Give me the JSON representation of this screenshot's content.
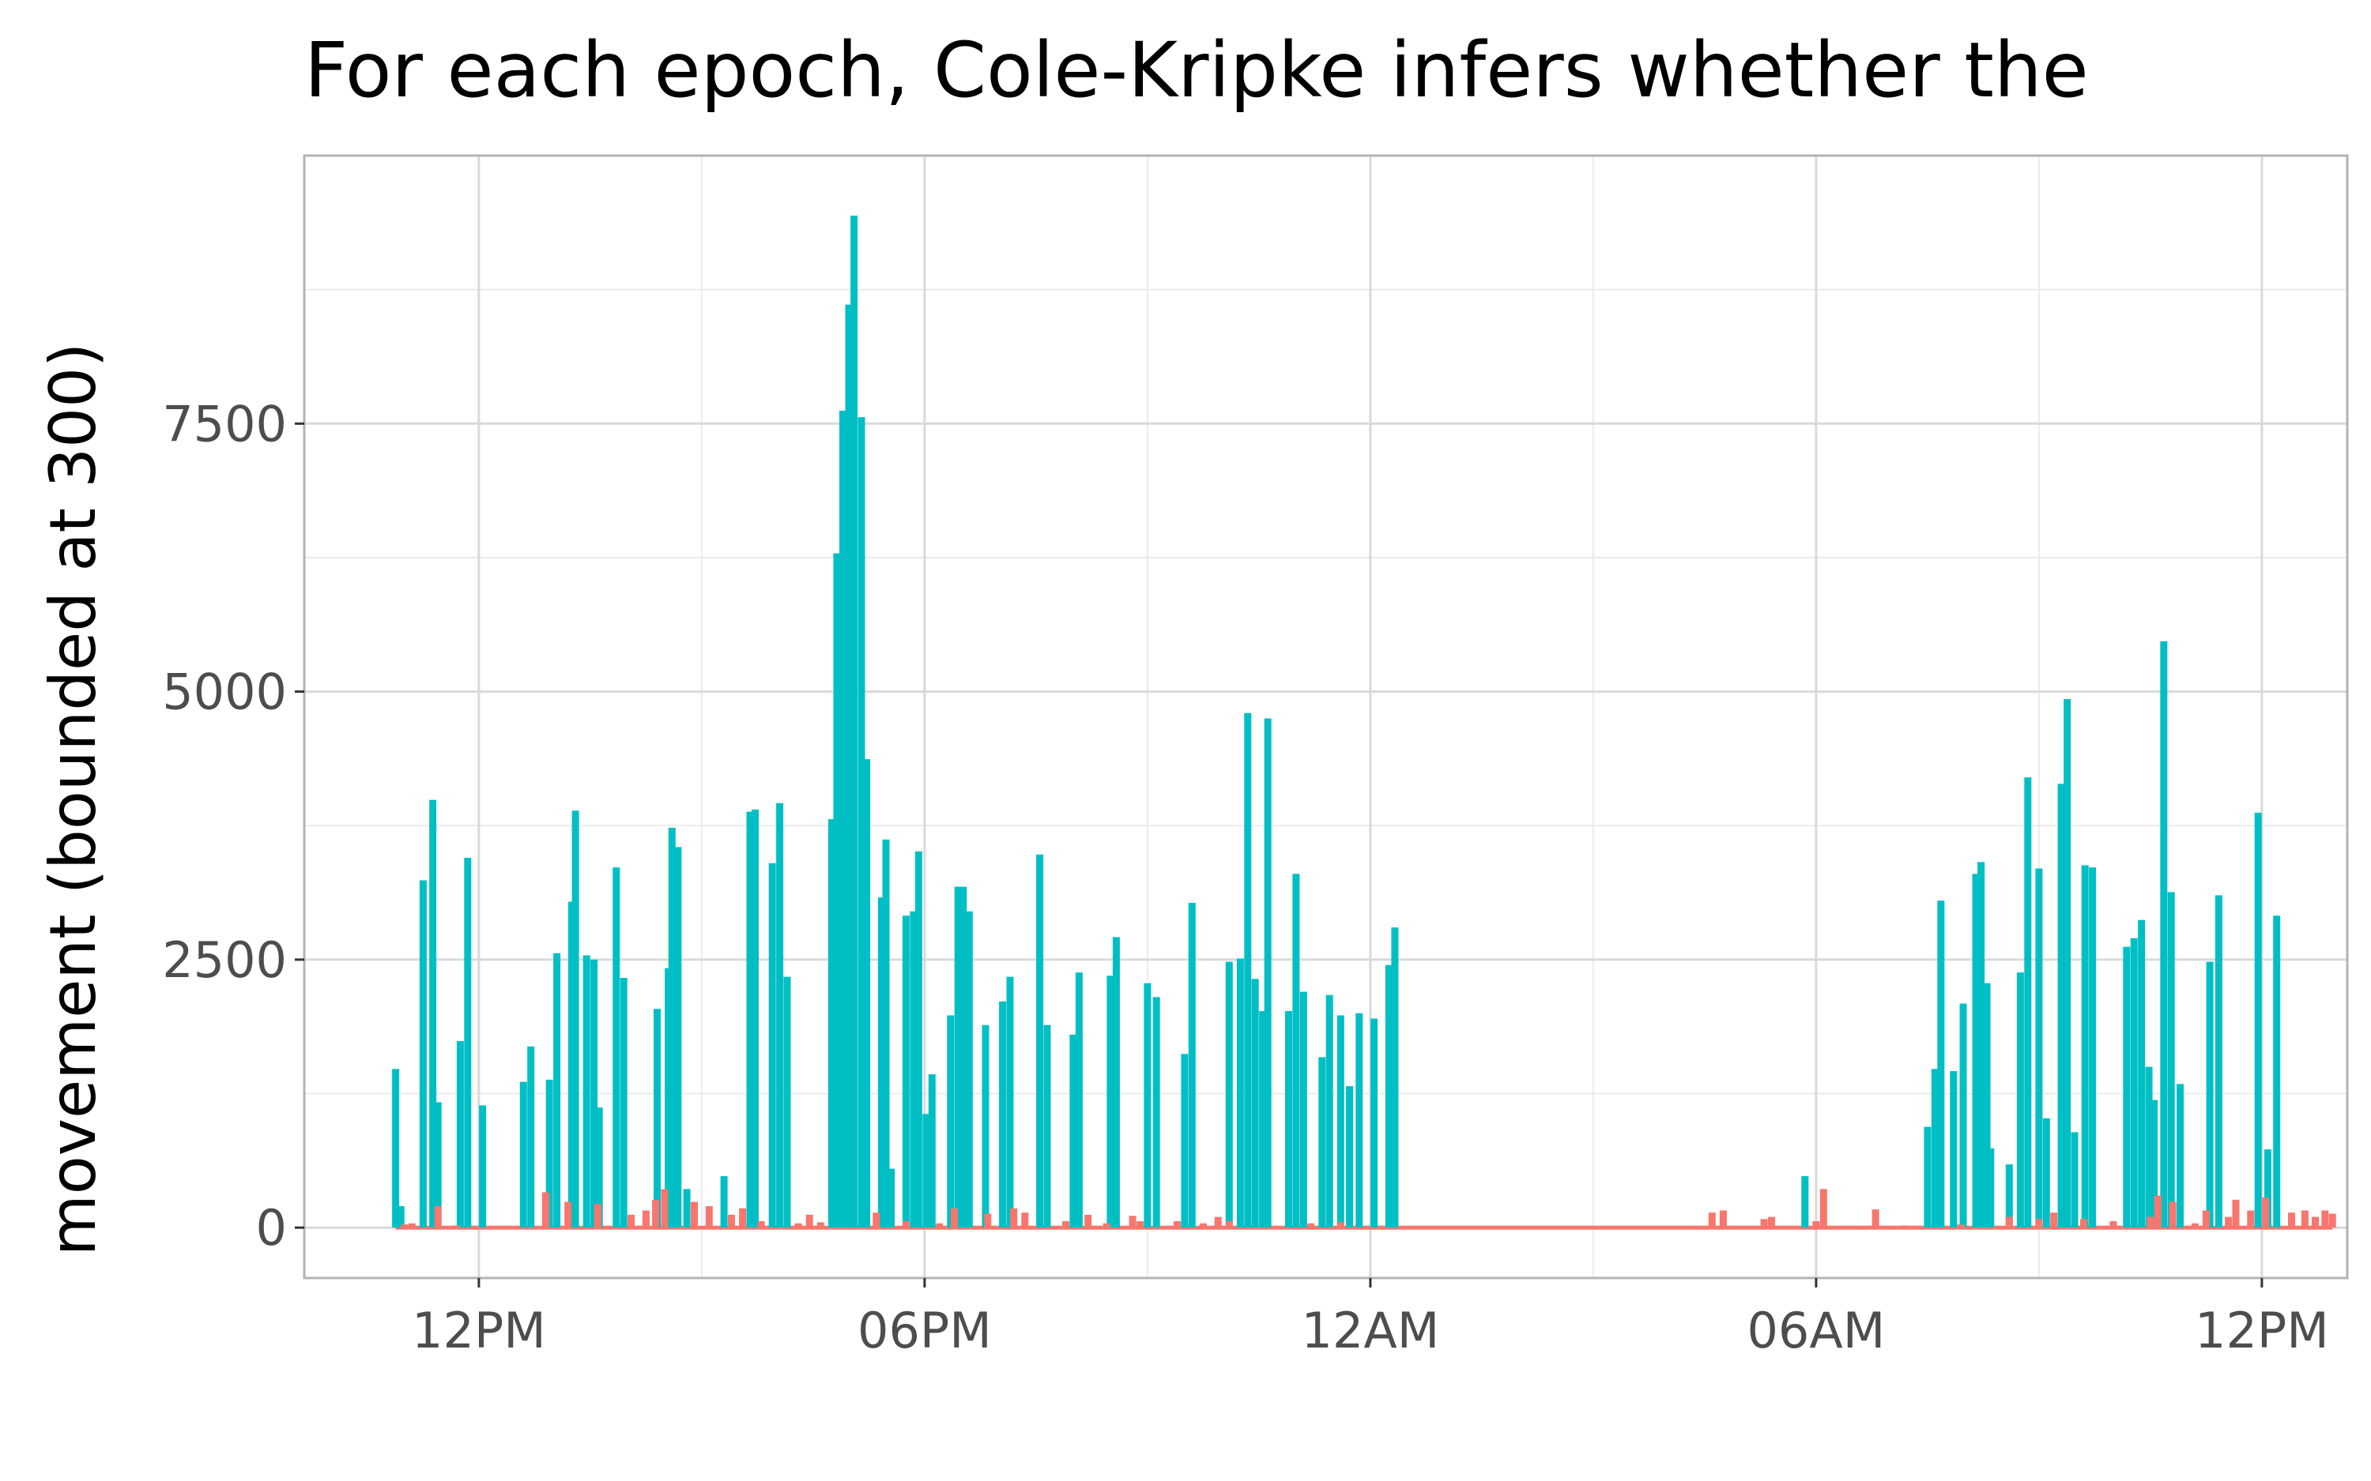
{
  "chart_data": {
    "type": "bar",
    "title": "For each epoch, Cole-Kripke infers whether the",
    "xlabel": "",
    "ylabel": "movement (bounded at 300)",
    "x_ticks": [
      "12PM",
      "06PM",
      "12AM",
      "06AM",
      "12PM"
    ],
    "x_tick_hours": [
      0,
      6,
      12,
      18,
      24
    ],
    "xlim_hours": [
      -2.35,
      25.15
    ],
    "y_ticks": [
      0,
      2500,
      5000,
      7500
    ],
    "ylim": [
      -470,
      10000
    ],
    "grid": true,
    "legend": "none",
    "series": [
      {
        "color": "#00BFC4",
        "points": [
          [
            -1.12,
            1480
          ],
          [
            -1.05,
            200
          ],
          [
            -0.75,
            3240
          ],
          [
            -0.62,
            3990
          ],
          [
            -0.55,
            1170
          ],
          [
            -0.25,
            1740
          ],
          [
            -0.15,
            3450
          ],
          [
            0.05,
            1140
          ],
          [
            0.6,
            1360
          ],
          [
            0.7,
            1690
          ],
          [
            0.95,
            1380
          ],
          [
            1.05,
            2560
          ],
          [
            1.25,
            3040
          ],
          [
            1.3,
            3890
          ],
          [
            1.45,
            2540
          ],
          [
            1.55,
            2500
          ],
          [
            1.62,
            1120
          ],
          [
            1.85,
            3360
          ],
          [
            1.95,
            2330
          ],
          [
            2.4,
            2040
          ],
          [
            2.55,
            2420
          ],
          [
            2.6,
            3730
          ],
          [
            2.68,
            3550
          ],
          [
            2.8,
            360
          ],
          [
            3.3,
            480
          ],
          [
            3.65,
            3880
          ],
          [
            3.72,
            3900
          ],
          [
            3.95,
            3400
          ],
          [
            4.05,
            3960
          ],
          [
            4.15,
            2340
          ],
          [
            4.75,
            3810
          ],
          [
            4.82,
            6290
          ],
          [
            4.9,
            7620
          ],
          [
            4.98,
            8610
          ],
          [
            5.05,
            9440
          ],
          [
            5.15,
            7560
          ],
          [
            5.22,
            4370
          ],
          [
            5.42,
            3080
          ],
          [
            5.48,
            3620
          ],
          [
            5.55,
            550
          ],
          [
            5.75,
            2910
          ],
          [
            5.85,
            2950
          ],
          [
            5.92,
            3510
          ],
          [
            6.02,
            1060
          ],
          [
            6.1,
            1430
          ],
          [
            6.35,
            1980
          ],
          [
            6.45,
            3180
          ],
          [
            6.52,
            3180
          ],
          [
            6.6,
            2950
          ],
          [
            6.82,
            1890
          ],
          [
            7.05,
            2110
          ],
          [
            7.15,
            2340
          ],
          [
            7.55,
            3480
          ],
          [
            7.65,
            1890
          ],
          [
            8.0,
            1800
          ],
          [
            8.08,
            2380
          ],
          [
            8.5,
            2350
          ],
          [
            8.58,
            2710
          ],
          [
            9.0,
            2280
          ],
          [
            9.12,
            2150
          ],
          [
            9.5,
            1620
          ],
          [
            9.6,
            3030
          ],
          [
            10.1,
            2480
          ],
          [
            10.25,
            2510
          ],
          [
            10.35,
            4800
          ],
          [
            10.45,
            2320
          ],
          [
            10.55,
            2020
          ],
          [
            10.62,
            4750
          ],
          [
            10.9,
            2020
          ],
          [
            11.0,
            3300
          ],
          [
            11.1,
            2200
          ],
          [
            11.35,
            1590
          ],
          [
            11.45,
            2170
          ],
          [
            11.6,
            1980
          ],
          [
            11.72,
            1320
          ],
          [
            11.85,
            2000
          ],
          [
            12.05,
            1950
          ],
          [
            12.25,
            2450
          ],
          [
            12.33,
            2800
          ],
          [
            17.85,
            480
          ],
          [
            19.5,
            940
          ],
          [
            19.6,
            1480
          ],
          [
            19.68,
            3050
          ],
          [
            19.85,
            1460
          ],
          [
            19.98,
            2090
          ],
          [
            20.15,
            3300
          ],
          [
            20.22,
            3410
          ],
          [
            20.3,
            2280
          ],
          [
            20.35,
            740
          ],
          [
            20.6,
            590
          ],
          [
            20.75,
            2380
          ],
          [
            20.85,
            4200
          ],
          [
            21.0,
            3350
          ],
          [
            21.1,
            1020
          ],
          [
            21.3,
            4140
          ],
          [
            21.38,
            4930
          ],
          [
            21.48,
            890
          ],
          [
            21.62,
            3380
          ],
          [
            21.72,
            3360
          ],
          [
            22.18,
            2620
          ],
          [
            22.28,
            2700
          ],
          [
            22.38,
            2870
          ],
          [
            22.48,
            1500
          ],
          [
            22.55,
            1190
          ],
          [
            22.68,
            5470
          ],
          [
            22.78,
            3130
          ],
          [
            22.9,
            1340
          ],
          [
            23.3,
            2480
          ],
          [
            23.42,
            3100
          ],
          [
            23.95,
            3870
          ],
          [
            24.08,
            730
          ],
          [
            24.2,
            2910
          ]
        ]
      },
      {
        "color": "#F8766D",
        "points": [
          [
            -1.0,
            30
          ],
          [
            -0.9,
            40
          ],
          [
            -0.55,
            200
          ],
          [
            -0.3,
            20
          ],
          [
            0.2,
            10
          ],
          [
            0.9,
            330
          ],
          [
            1.2,
            240
          ],
          [
            1.6,
            220
          ],
          [
            2.05,
            120
          ],
          [
            2.25,
            160
          ],
          [
            2.38,
            260
          ],
          [
            2.5,
            360
          ],
          [
            2.9,
            240
          ],
          [
            3.1,
            200
          ],
          [
            3.4,
            120
          ],
          [
            3.55,
            180
          ],
          [
            3.8,
            60
          ],
          [
            4.3,
            40
          ],
          [
            4.45,
            120
          ],
          [
            4.6,
            50
          ],
          [
            5.35,
            140
          ],
          [
            5.75,
            60
          ],
          [
            6.2,
            40
          ],
          [
            6.4,
            180
          ],
          [
            6.85,
            130
          ],
          [
            7.2,
            180
          ],
          [
            7.35,
            140
          ],
          [
            7.9,
            60
          ],
          [
            8.2,
            120
          ],
          [
            8.45,
            40
          ],
          [
            8.8,
            110
          ],
          [
            8.9,
            60
          ],
          [
            9.4,
            60
          ],
          [
            9.75,
            40
          ],
          [
            9.95,
            100
          ],
          [
            10.1,
            60
          ],
          [
            11.2,
            40
          ],
          [
            11.6,
            50
          ],
          [
            16.6,
            140
          ],
          [
            16.75,
            160
          ],
          [
            17.3,
            80
          ],
          [
            17.4,
            100
          ],
          [
            18.0,
            60
          ],
          [
            18.1,
            360
          ],
          [
            18.8,
            170
          ],
          [
            19.2,
            20
          ],
          [
            19.95,
            30
          ],
          [
            20.6,
            100
          ],
          [
            21.0,
            80
          ],
          [
            21.2,
            140
          ],
          [
            21.6,
            80
          ],
          [
            22.0,
            60
          ],
          [
            22.5,
            100
          ],
          [
            22.6,
            300
          ],
          [
            22.8,
            240
          ],
          [
            23.1,
            40
          ],
          [
            23.25,
            160
          ],
          [
            23.55,
            100
          ],
          [
            23.65,
            260
          ],
          [
            23.85,
            160
          ],
          [
            24.05,
            280
          ],
          [
            24.4,
            140
          ],
          [
            24.58,
            160
          ],
          [
            24.72,
            100
          ],
          [
            24.85,
            160
          ],
          [
            24.95,
            130
          ]
        ]
      }
    ]
  }
}
